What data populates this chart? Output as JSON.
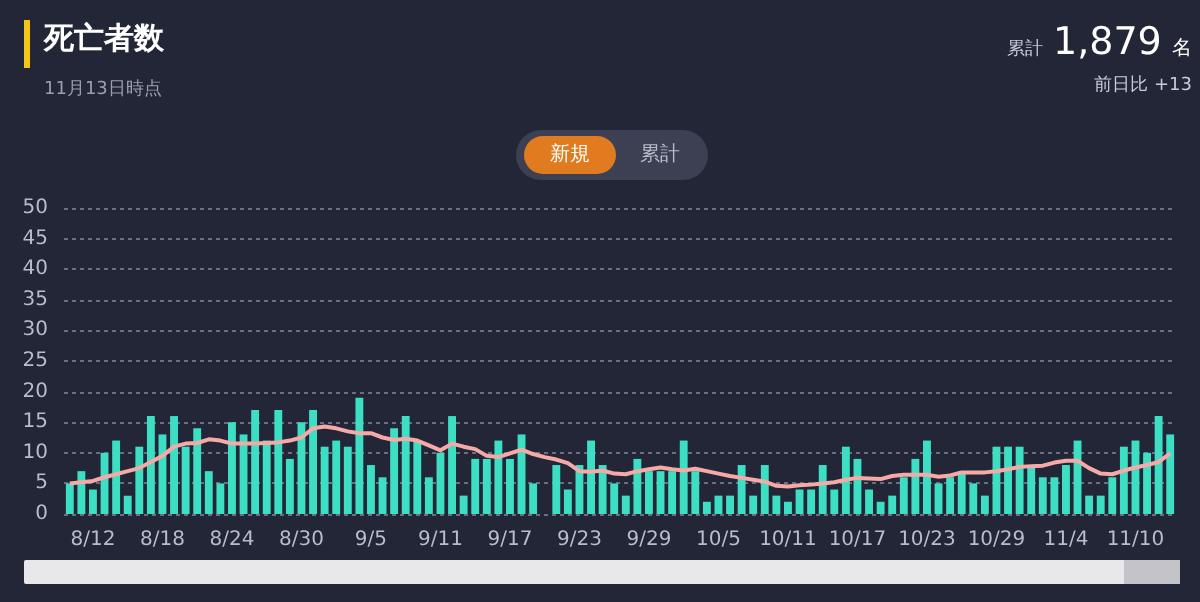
{
  "chart_data": {
    "type": "bar",
    "title": "死亡者数",
    "subtitle": "11月13日時点",
    "annotations": [
      "累計",
      "1,879",
      "名",
      "前日比 +13",
      "新規",
      "累計"
    ],
    "categories": [
      null,
      null,
      "8/12",
      null,
      null,
      null,
      null,
      null,
      "8/18",
      null,
      null,
      null,
      null,
      null,
      "8/24",
      null,
      null,
      null,
      null,
      null,
      "8/30",
      null,
      null,
      null,
      null,
      null,
      "9/5",
      null,
      null,
      null,
      null,
      null,
      "9/11",
      null,
      null,
      null,
      null,
      null,
      "9/17",
      null,
      null,
      null,
      null,
      null,
      "9/23",
      null,
      null,
      null,
      null,
      null,
      "9/29",
      null,
      null,
      null,
      null,
      null,
      "10/5",
      null,
      null,
      null,
      null,
      null,
      "10/11",
      null,
      null,
      null,
      null,
      null,
      "10/17",
      null,
      null,
      null,
      null,
      null,
      "10/23",
      null,
      null,
      null,
      null,
      null,
      "10/29",
      null,
      null,
      null,
      null,
      null,
      "11/4",
      null,
      null,
      null,
      null,
      null,
      "11/10",
      null,
      null,
      null
    ],
    "series": [
      {
        "color": "#3ddfc4",
        "values": [
          5,
          7,
          4,
          10,
          12,
          3,
          11,
          16,
          13,
          16,
          11,
          14,
          7,
          5,
          15,
          13,
          17,
          12,
          17,
          9,
          15,
          17,
          11,
          12,
          11,
          19,
          8,
          6,
          14,
          16,
          12,
          6,
          10,
          16,
          3,
          9,
          9,
          12,
          9,
          13,
          5,
          0,
          8,
          4,
          8,
          12,
          8,
          5,
          3,
          9,
          7,
          7,
          7,
          12,
          7,
          2,
          3,
          3,
          8,
          3,
          8,
          3,
          2,
          4,
          4,
          8,
          4,
          11,
          9,
          4,
          2,
          3,
          6,
          9,
          12,
          5,
          6,
          7,
          5,
          3,
          11,
          11,
          11,
          8,
          6,
          6,
          8,
          12,
          3,
          3,
          6,
          11,
          12,
          10,
          16,
          13
        ]
      },
      {
        "type": "line",
        "color": "#f5aaa8",
        "values": [
          5.0,
          5.2,
          5.4,
          6.0,
          6.5,
          7.0,
          7.5,
          8.5,
          9.5,
          11.0,
          11.5,
          11.6,
          12.2,
          12.0,
          11.5,
          11.5,
          11.5,
          11.6,
          11.7,
          12.0,
          12.5,
          14.0,
          14.3,
          14.0,
          13.5,
          13.2,
          13.2,
          12.5,
          12.1,
          12.3,
          12.0,
          11.2,
          10.4,
          11.5,
          11.0,
          10.6,
          9.5,
          9.3,
          9.9,
          10.5,
          9.8,
          9.3,
          8.9,
          8.3,
          7.0,
          6.9,
          7.1,
          6.6,
          6.5,
          7.0,
          7.3,
          7.6,
          7.3,
          7.1,
          7.4,
          7.0,
          6.6,
          6.2,
          5.9,
          5.6,
          5.3,
          4.6,
          4.5,
          4.7,
          4.8,
          5.0,
          5.2,
          5.6,
          5.9,
          5.8,
          5.7,
          6.2,
          6.4,
          6.4,
          6.4,
          6.1,
          6.3,
          6.8,
          6.8,
          6.8,
          7.0,
          7.3,
          7.7,
          7.8,
          7.9,
          8.4,
          8.7,
          8.7,
          7.5,
          6.6,
          6.5,
          7.1,
          7.6,
          8.0,
          8.5,
          9.9
        ]
      }
    ],
    "ylim": [
      0,
      50
    ],
    "yticks": [
      0,
      5,
      10,
      15,
      20,
      25,
      30,
      35,
      40,
      45,
      50
    ],
    "grid": "y",
    "marker": "none"
  }
}
